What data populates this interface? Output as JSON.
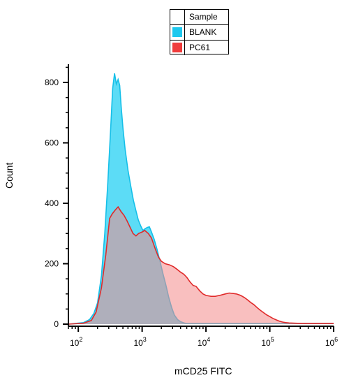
{
  "chart_data": {
    "type": "area",
    "title": "",
    "xlabel": "mCD25 FITC",
    "ylabel": "Count",
    "x_scale": "log",
    "xlim": [
      70,
      1000000
    ],
    "ylim": [
      0,
      850
    ],
    "x_ticks": [
      {
        "value": 100,
        "base": "10",
        "exp": "2"
      },
      {
        "value": 1000,
        "base": "10",
        "exp": "3"
      },
      {
        "value": 10000,
        "base": "10",
        "exp": "4"
      },
      {
        "value": 100000,
        "base": "10",
        "exp": "5"
      },
      {
        "value": 1000000,
        "base": "10",
        "exp": "6"
      }
    ],
    "y_ticks": [
      0,
      200,
      400,
      600,
      800
    ],
    "legend": {
      "title": "Sample",
      "placement": "top-center",
      "entries": [
        {
          "name": "BLANK",
          "color": "#1ec8ee"
        },
        {
          "name": "PC61",
          "color": "#ef3b3b"
        }
      ]
    },
    "series": [
      {
        "name": "PC61",
        "fill": "#f48b8b",
        "stroke": "#e02a2a",
        "points": [
          [
            70,
            0
          ],
          [
            120,
            3
          ],
          [
            160,
            12
          ],
          [
            190,
            40
          ],
          [
            230,
            120
          ],
          [
            270,
            230
          ],
          [
            310,
            350
          ],
          [
            340,
            365
          ],
          [
            380,
            378
          ],
          [
            420,
            388
          ],
          [
            470,
            372
          ],
          [
            520,
            360
          ],
          [
            580,
            342
          ],
          [
            650,
            320
          ],
          [
            720,
            300
          ],
          [
            800,
            292
          ],
          [
            880,
            300
          ],
          [
            1000,
            305
          ],
          [
            1100,
            310
          ],
          [
            1250,
            300
          ],
          [
            1400,
            285
          ],
          [
            1600,
            250
          ],
          [
            1800,
            222
          ],
          [
            2000,
            208
          ],
          [
            2300,
            200
          ],
          [
            2700,
            196
          ],
          [
            3100,
            190
          ],
          [
            3500,
            182
          ],
          [
            4000,
            172
          ],
          [
            4500,
            165
          ],
          [
            5000,
            155
          ],
          [
            5600,
            140
          ],
          [
            6300,
            128
          ],
          [
            7000,
            125
          ],
          [
            8000,
            110
          ],
          [
            9000,
            100
          ],
          [
            10000,
            95
          ],
          [
            12000,
            92
          ],
          [
            14000,
            92
          ],
          [
            17000,
            96
          ],
          [
            20000,
            100
          ],
          [
            23000,
            103
          ],
          [
            26000,
            102
          ],
          [
            30000,
            100
          ],
          [
            35000,
            95
          ],
          [
            40000,
            88
          ],
          [
            45000,
            80
          ],
          [
            50000,
            72
          ],
          [
            56000,
            65
          ],
          [
            63000,
            55
          ],
          [
            71000,
            46
          ],
          [
            80000,
            38
          ],
          [
            90000,
            30
          ],
          [
            100000,
            25
          ],
          [
            112000,
            19
          ],
          [
            126000,
            14
          ],
          [
            141000,
            10
          ],
          [
            158000,
            7
          ],
          [
            178000,
            5
          ],
          [
            200000,
            4
          ],
          [
            250000,
            3
          ],
          [
            320000,
            2
          ],
          [
            500000,
            2
          ],
          [
            1000000,
            2
          ]
        ]
      },
      {
        "name": "BLANK",
        "fill": "#5cdcf6",
        "stroke": "#15bfe8",
        "points": [
          [
            70,
            0
          ],
          [
            120,
            5
          ],
          [
            150,
            15
          ],
          [
            175,
            35
          ],
          [
            200,
            70
          ],
          [
            230,
            160
          ],
          [
            260,
            300
          ],
          [
            290,
            470
          ],
          [
            320,
            640
          ],
          [
            345,
            780
          ],
          [
            370,
            830
          ],
          [
            395,
            795
          ],
          [
            420,
            810
          ],
          [
            445,
            790
          ],
          [
            470,
            720
          ],
          [
            500,
            650
          ],
          [
            540,
            580
          ],
          [
            600,
            510
          ],
          [
            660,
            460
          ],
          [
            730,
            410
          ],
          [
            800,
            375
          ],
          [
            870,
            345
          ],
          [
            950,
            325
          ],
          [
            1030,
            310
          ],
          [
            1100,
            315
          ],
          [
            1200,
            320
          ],
          [
            1300,
            322
          ],
          [
            1400,
            305
          ],
          [
            1550,
            280
          ],
          [
            1700,
            250
          ],
          [
            1900,
            210
          ],
          [
            2100,
            170
          ],
          [
            2350,
            130
          ],
          [
            2600,
            90
          ],
          [
            2900,
            55
          ],
          [
            3200,
            30
          ],
          [
            3600,
            15
          ],
          [
            4000,
            8
          ],
          [
            4500,
            4
          ],
          [
            5000,
            2
          ],
          [
            10000,
            2
          ],
          [
            100000,
            2
          ],
          [
            1000000,
            2
          ]
        ]
      }
    ]
  }
}
